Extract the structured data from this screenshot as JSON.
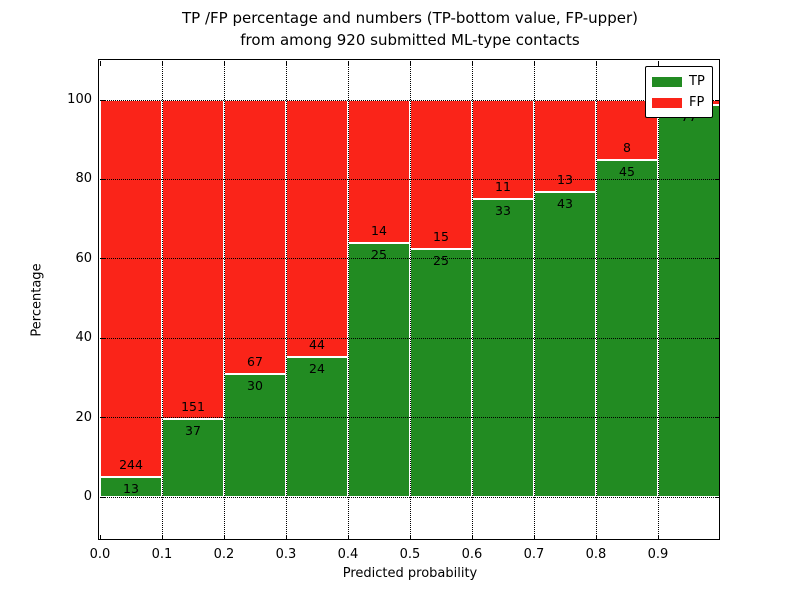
{
  "figure": {
    "title_line1": "TP /FP percentage and numbers (TP-bottom value, FP-upper)",
    "title_line2": "from among 920 submitted ML-type contacts",
    "xlabel": "Predicted probability",
    "ylabel": "Percentage"
  },
  "legend": {
    "position": "upper right",
    "items": [
      {
        "label": "TP",
        "color": "#228b22"
      },
      {
        "label": "FP",
        "color": "#fa2419"
      }
    ]
  },
  "chart_data": {
    "type": "bar",
    "stacked": true,
    "normalized_to_percent": true,
    "title": "TP /FP percentage and numbers (TP-bottom value, FP-upper) from among 920 submitted ML-type contacts",
    "xlabel": "Predicted probability",
    "ylabel": "Percentage",
    "total_contacts": 920,
    "x_ticks": [
      "0.0",
      "0.1",
      "0.2",
      "0.3",
      "0.4",
      "0.5",
      "0.6",
      "0.7",
      "0.8",
      "0.9"
    ],
    "y_ticks": [
      0,
      20,
      40,
      60,
      80,
      100
    ],
    "xlim": [
      0.0,
      1.0
    ],
    "ylim": [
      -11,
      110
    ],
    "grid": true,
    "bar_width": 0.1,
    "bar_edge_color": "#ffffff",
    "series": [
      {
        "name": "TP",
        "color": "#228b22",
        "counts": [
          13,
          37,
          30,
          24,
          25,
          25,
          33,
          43,
          45,
          77
        ]
      },
      {
        "name": "FP",
        "color": "#fa2419",
        "counts": [
          244,
          151,
          67,
          44,
          14,
          15,
          11,
          13,
          8,
          1
        ]
      }
    ],
    "bins": [
      {
        "range": "0.0-0.1",
        "tp": 13,
        "fp": 244,
        "tp_pct": 5.06
      },
      {
        "range": "0.1-0.2",
        "tp": 37,
        "fp": 151,
        "tp_pct": 19.68
      },
      {
        "range": "0.2-0.3",
        "tp": 30,
        "fp": 67,
        "tp_pct": 30.93
      },
      {
        "range": "0.3-0.4",
        "tp": 24,
        "fp": 44,
        "tp_pct": 35.29
      },
      {
        "range": "0.4-0.5",
        "tp": 25,
        "fp": 14,
        "tp_pct": 64.1
      },
      {
        "range": "0.5-0.6",
        "tp": 25,
        "fp": 15,
        "tp_pct": 62.5
      },
      {
        "range": "0.6-0.7",
        "tp": 33,
        "fp": 11,
        "tp_pct": 75.0
      },
      {
        "range": "0.7-0.8",
        "tp": 43,
        "fp": 13,
        "tp_pct": 76.79
      },
      {
        "range": "0.8-0.9",
        "tp": 45,
        "fp": 8,
        "tp_pct": 84.91
      },
      {
        "range": "0.9-1.0",
        "tp": 77,
        "fp": 1,
        "tp_pct": 98.72,
        "fp_label_hidden_behind_legend": true
      }
    ]
  }
}
